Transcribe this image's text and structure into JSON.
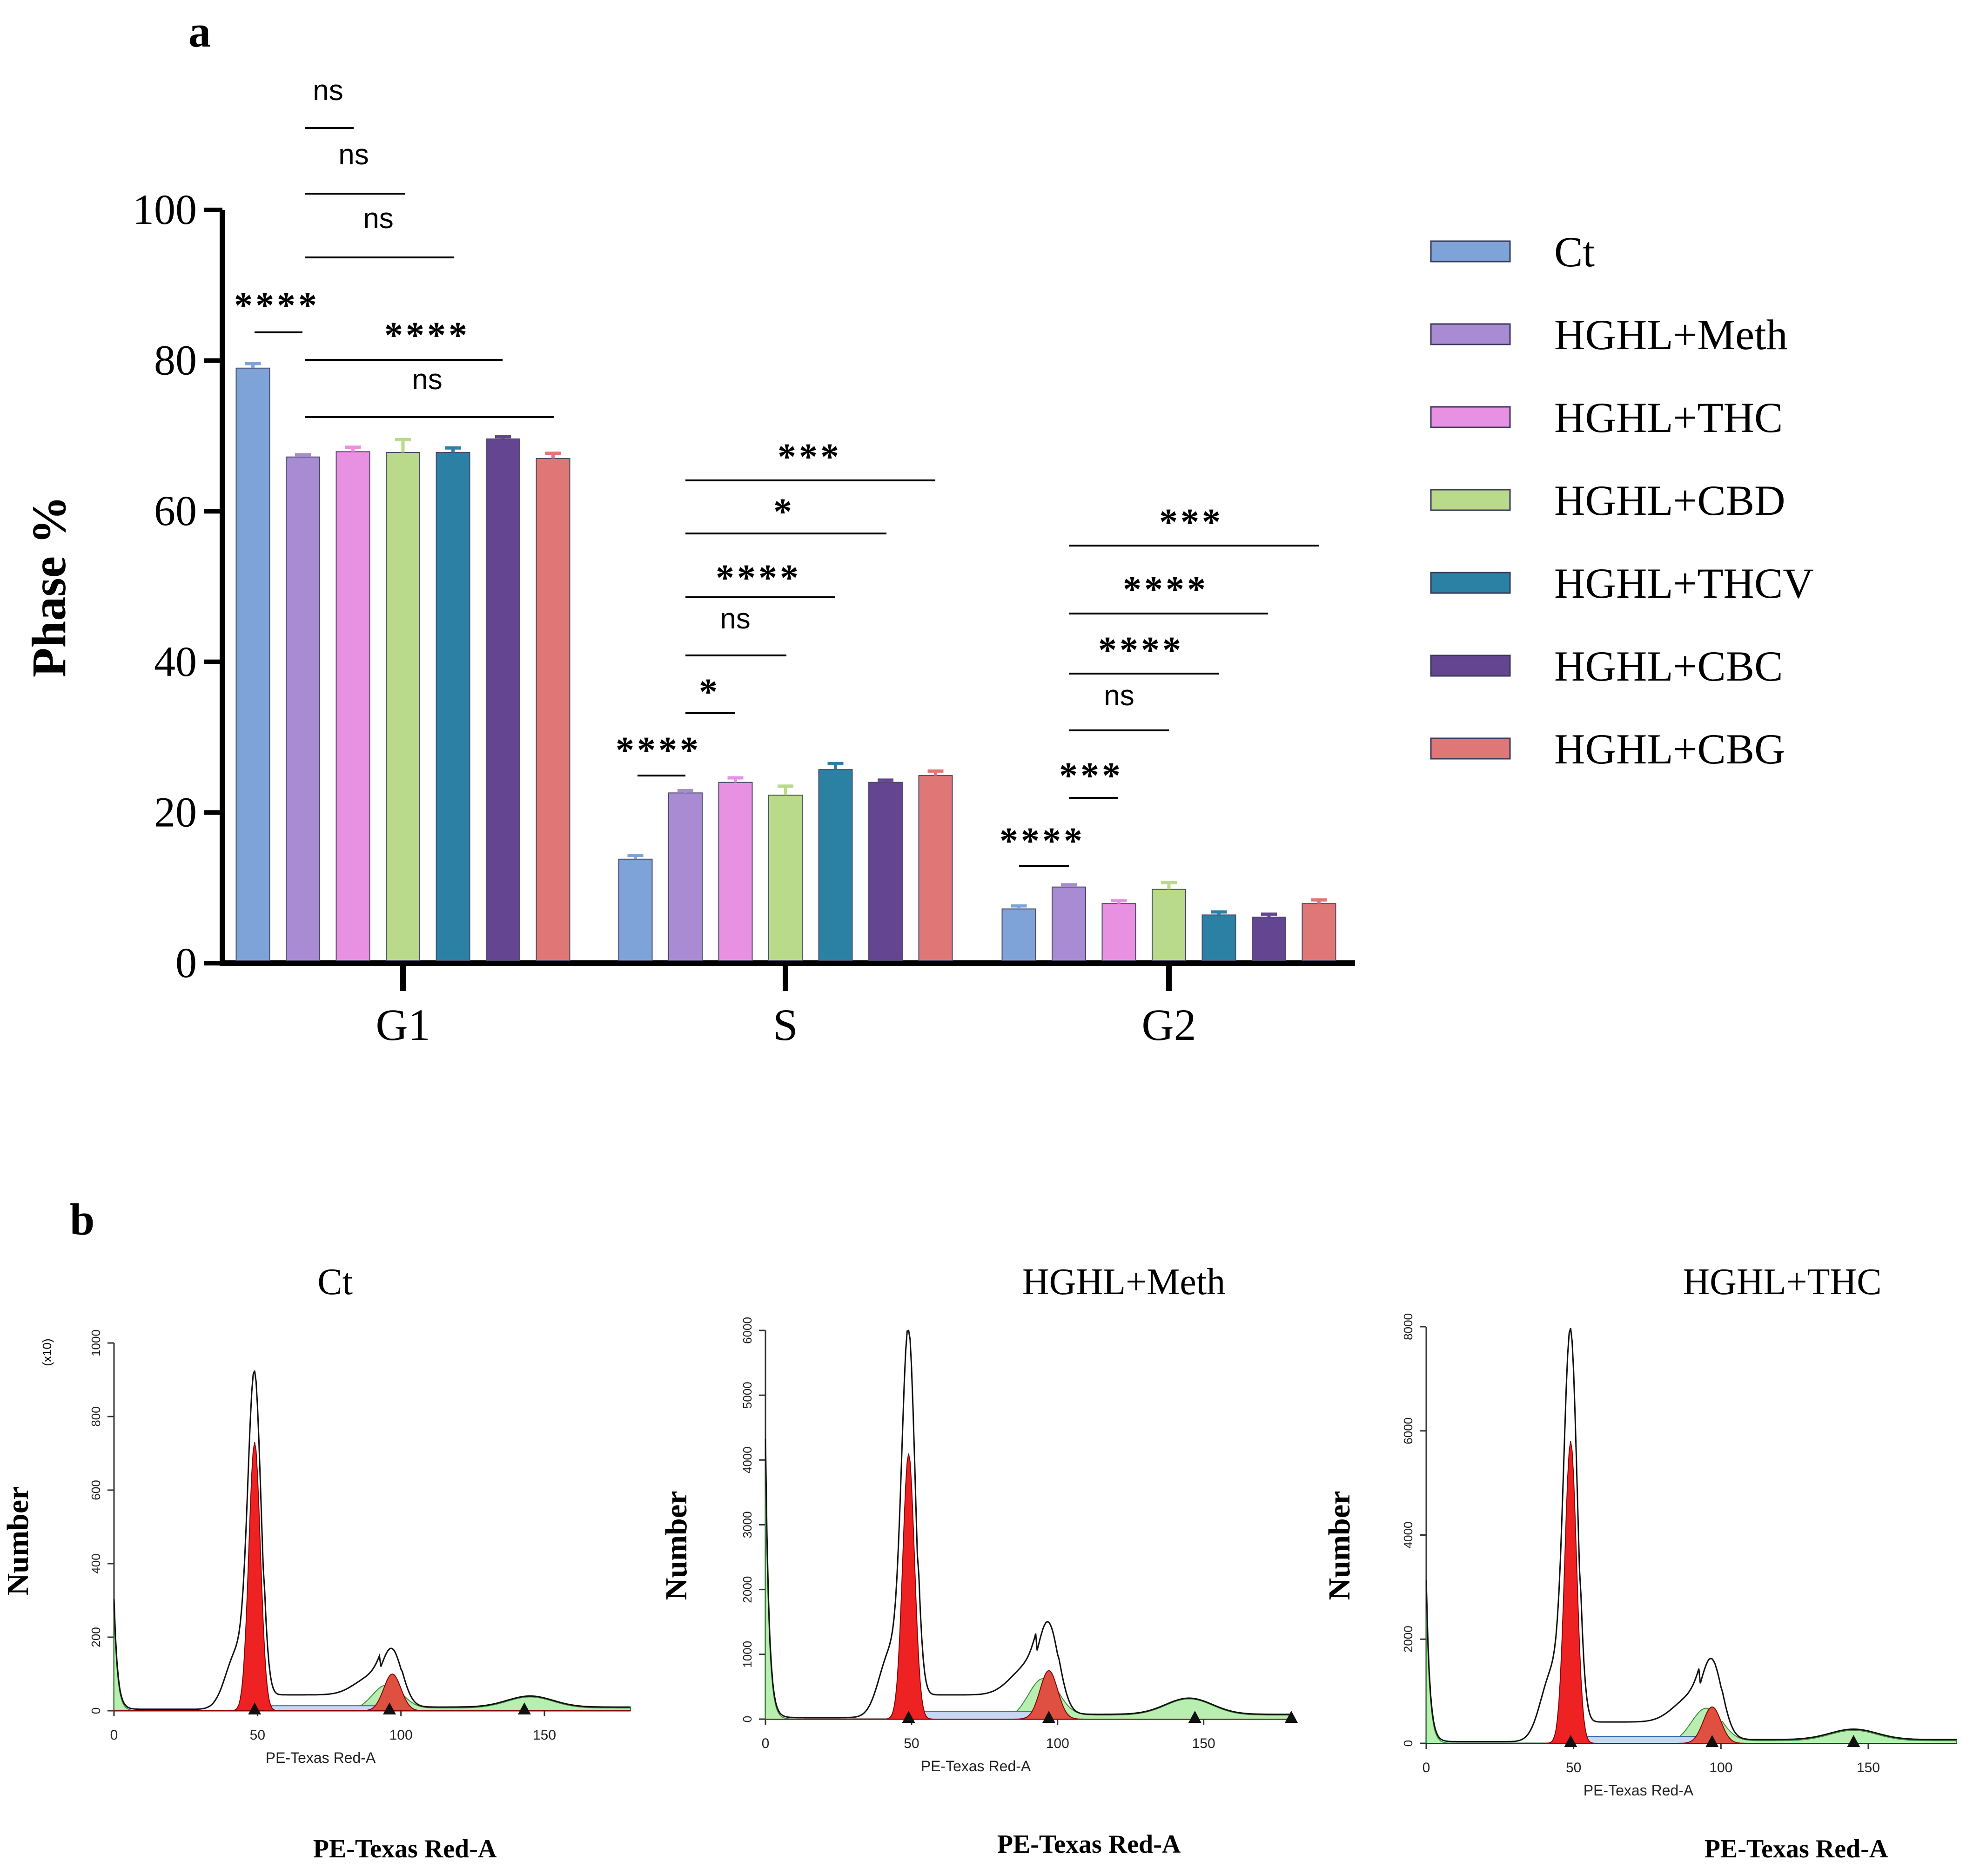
{
  "panel_a": {
    "label": "a",
    "chart_data": {
      "type": "bar",
      "ylabel": "Phase %",
      "ylim": [
        0,
        100
      ],
      "yticks": [
        "0",
        "20",
        "40",
        "60",
        "80",
        "100"
      ],
      "categories": [
        "G1",
        "S",
        "G2"
      ],
      "series": [
        {
          "name": "Ct",
          "color": "#7ea3d8",
          "values": [
            79,
            13.8,
            7.2
          ],
          "errors": [
            0.6,
            0.5,
            0.4
          ]
        },
        {
          "name": "HGHL+Meth",
          "color": "#a98bd4",
          "values": [
            67.2,
            22.6,
            10.1
          ],
          "errors": [
            0.3,
            0.3,
            0.3
          ]
        },
        {
          "name": "HGHL+THC",
          "color": "#e891e3",
          "values": [
            67.9,
            24.0,
            7.9
          ],
          "errors": [
            0.6,
            0.6,
            0.4
          ]
        },
        {
          "name": "HGHL+CBD",
          "color": "#b9da8a",
          "values": [
            67.8,
            22.3,
            9.8
          ],
          "errors": [
            1.7,
            1.2,
            0.9
          ]
        },
        {
          "name": "HGHL+THCV",
          "color": "#2a81a3",
          "values": [
            67.8,
            25.7,
            6.4
          ],
          "errors": [
            0.6,
            0.8,
            0.4
          ]
        },
        {
          "name": "HGHL+CBC",
          "color": "#634592",
          "values": [
            69.6,
            24.0,
            6.1
          ],
          "errors": [
            0.3,
            0.3,
            0.4
          ]
        },
        {
          "name": "HGHL+CBG",
          "color": "#e07777",
          "values": [
            67.0,
            24.9,
            7.9
          ],
          "errors": [
            0.7,
            0.6,
            0.5
          ]
        }
      ],
      "significance": [
        {
          "category": 0,
          "label": "****",
          "from": 0,
          "to": 1
        },
        {
          "category": 0,
          "label": "ns",
          "from": 1,
          "to": 2
        },
        {
          "category": 0,
          "label": "ns",
          "from": 1,
          "to": 3
        },
        {
          "category": 0,
          "label": "ns",
          "from": 1,
          "to": 4
        },
        {
          "category": 0,
          "label": "****",
          "from": 1,
          "to": 5
        },
        {
          "category": 0,
          "label": "ns",
          "from": 1,
          "to": 6
        },
        {
          "category": 1,
          "label": "****",
          "from": 0,
          "to": 1
        },
        {
          "category": 1,
          "label": "*",
          "from": 1,
          "to": 2
        },
        {
          "category": 1,
          "label": "ns",
          "from": 1,
          "to": 3
        },
        {
          "category": 1,
          "label": "****",
          "from": 1,
          "to": 4
        },
        {
          "category": 1,
          "label": "*",
          "from": 1,
          "to": 5
        },
        {
          "category": 1,
          "label": "***",
          "from": 1,
          "to": 6
        },
        {
          "category": 2,
          "label": "****",
          "from": 0,
          "to": 1
        },
        {
          "category": 2,
          "label": "***",
          "from": 1,
          "to": 2
        },
        {
          "category": 2,
          "label": "ns",
          "from": 1,
          "to": 3
        },
        {
          "category": 2,
          "label": "****",
          "from": 1,
          "to": 4
        },
        {
          "category": 2,
          "label": "****",
          "from": 1,
          "to": 5
        },
        {
          "category": 2,
          "label": "***",
          "from": 1,
          "to": 6
        }
      ],
      "legend_position": "right"
    }
  },
  "panel_b": {
    "label": "b",
    "chart_data": [
      {
        "type": "area",
        "title": "Ct",
        "ylabel": "Number",
        "xlabel": "PE-Texas Red-A",
        "xaxis_caption": "PE-Texas Red-A",
        "scale_note": "(x10)",
        "yticks": [
          "0",
          "200",
          "400",
          "600",
          "800",
          "1000"
        ],
        "ymax": 1000,
        "xticks": [
          "0",
          "50",
          "100",
          "150"
        ],
        "xmax": 180,
        "markers": [
          49,
          96,
          143
        ],
        "g1_peak": 870,
        "g1_fit": 730,
        "g2_peak": 140,
        "g2_fit": 100,
        "left_spike": 300,
        "tail_peak": 30
      },
      {
        "type": "area",
        "title": "HGHL+Meth",
        "ylabel": "Number",
        "xlabel": "PE-Texas Red-A",
        "xaxis_caption": "PE-Texas Red-A",
        "yticks": [
          "0",
          "1000",
          "2000",
          "3000",
          "4000",
          "5000",
          "6000"
        ],
        "ymax": 6000,
        "xticks": [
          "0",
          "50",
          "100",
          "150"
        ],
        "xmax": 180,
        "markers": [
          49,
          97,
          147,
          180
        ],
        "g1_peak": 5700,
        "g1_fit": 4100,
        "g2_peak": 1250,
        "g2_fit": 750,
        "left_spike": 4300,
        "tail_peak": 250
      },
      {
        "type": "area",
        "title": "HGHL+THC",
        "ylabel": "Number",
        "xlabel": "PE-Texas Red-A",
        "xaxis_caption": "PE-Texas Red-A",
        "yticks": [
          "0",
          "2000",
          "4000",
          "6000",
          "8000"
        ],
        "ymax": 8000,
        "xticks": [
          "0",
          "50",
          "100",
          "150"
        ],
        "xmax": 180,
        "markers": [
          49,
          97,
          145
        ],
        "g1_peak": 7500,
        "g1_fit": 5800,
        "g2_peak": 1350,
        "g2_fit": 700,
        "left_spike": 3100,
        "tail_peak": 200
      }
    ]
  }
}
